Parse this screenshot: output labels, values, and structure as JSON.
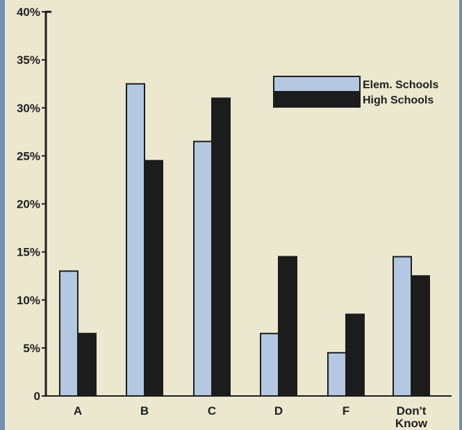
{
  "chart_data": {
    "type": "bar",
    "categories": [
      "A",
      "B",
      "C",
      "D",
      "F",
      "Don't Know"
    ],
    "series": [
      {
        "name": "Elem. Schools",
        "values": [
          13,
          32.5,
          26.5,
          6.5,
          4.5,
          14.5
        ]
      },
      {
        "name": "High Schools",
        "values": [
          6.5,
          24.5,
          31,
          14.5,
          8.5,
          12.5
        ]
      }
    ],
    "yticks": [
      "0",
      "5%",
      "10%",
      "15%",
      "20%",
      "25%",
      "30%",
      "35%",
      "40%"
    ],
    "ylim": [
      0,
      40
    ],
    "legend": "top-right",
    "colors": {
      "elem": "#b4c8e2",
      "high": "#1c1c1c",
      "bar_edge": "#1c1c1c",
      "background": "#ece8d0",
      "edge": "#6f8fb5"
    }
  }
}
